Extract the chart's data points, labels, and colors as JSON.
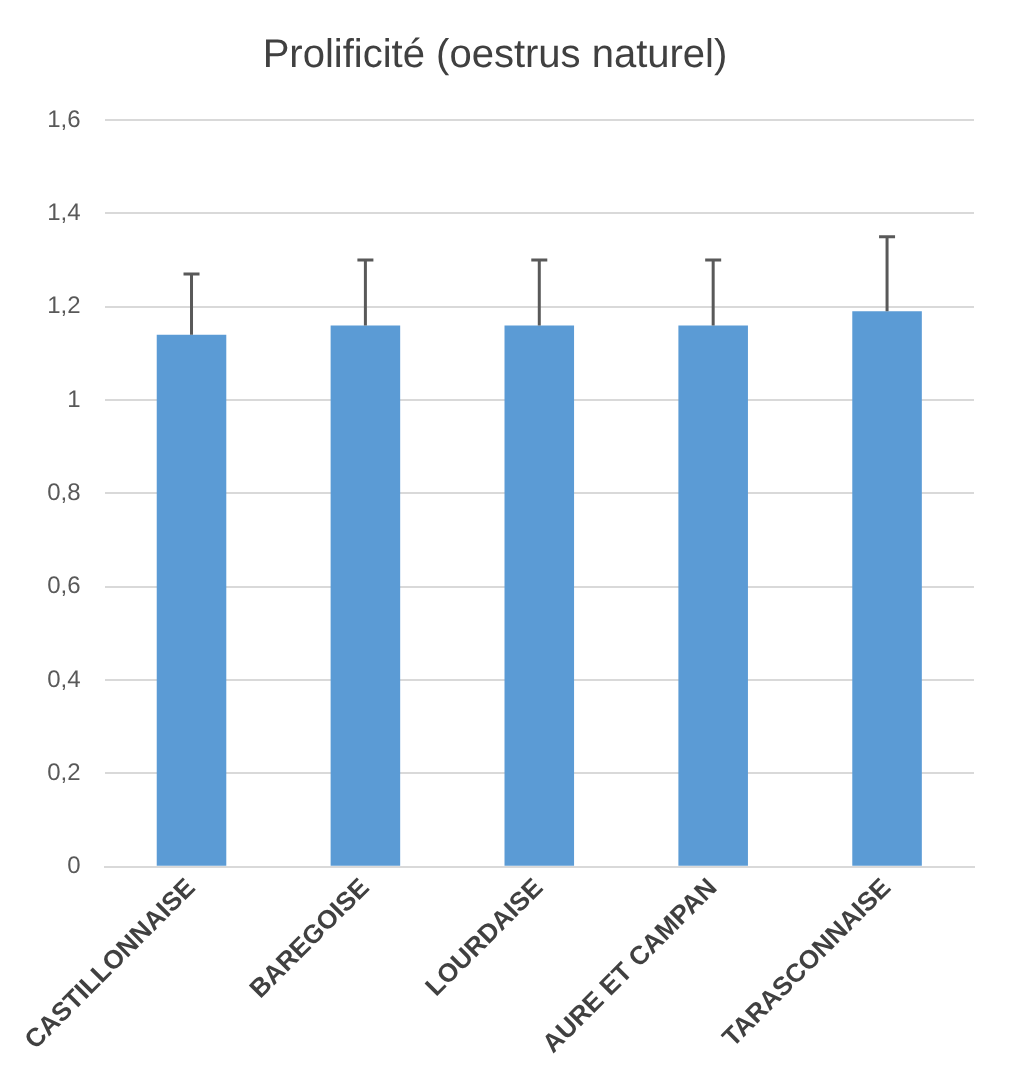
{
  "chart_data": {
    "type": "bar",
    "title": "Prolificité (oestrus naturel)",
    "categories": [
      "CASTILLONNAISE",
      "BAREGOISE",
      "LOURDAISE",
      "AURE ET CAMPAN",
      "TARASCONNAISE"
    ],
    "values": [
      1.14,
      1.16,
      1.16,
      1.16,
      1.19
    ],
    "errors": [
      [
        1.14,
        1.27
      ],
      [
        1.16,
        1.3
      ],
      [
        1.16,
        1.3
      ],
      [
        1.16,
        1.3
      ],
      [
        1.19,
        1.35
      ]
    ],
    "color": "#5b9bd5",
    "ylim": [
      0,
      1.6
    ],
    "yticks": [
      {
        "value": 0,
        "label": "0"
      },
      {
        "value": 0.2,
        "label": "0,2"
      },
      {
        "value": 0.4,
        "label": "0,4"
      },
      {
        "value": 0.6,
        "label": "0,6"
      },
      {
        "value": 0.8,
        "label": "0,8"
      },
      {
        "value": 1,
        "label": "1"
      },
      {
        "value": 1.2,
        "label": "1,2"
      },
      {
        "value": 1.4,
        "label": "1,4"
      },
      {
        "value": 1.6,
        "label": "1,6"
      }
    ],
    "grid": "y"
  }
}
